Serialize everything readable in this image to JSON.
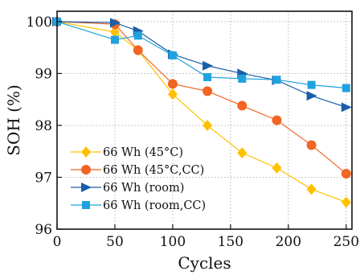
{
  "chart_data": {
    "type": "line",
    "xlabel": "Cycles",
    "ylabel": "SOH (%)",
    "xlim": [
      0,
      255
    ],
    "ylim": [
      96,
      100.2
    ],
    "xticks": [
      "0",
      "50",
      "100",
      "150",
      "200",
      "250"
    ],
    "yticks": [
      "96",
      "97",
      "98",
      "99",
      "100"
    ],
    "grid": true,
    "legend_position": "lower-left",
    "series": [
      {
        "name": "66 Wh (45°C)",
        "color": "#ffc000",
        "marker": "diamond",
        "points": [
          [
            0,
            100.0
          ],
          [
            50,
            99.8
          ],
          [
            70,
            99.45
          ],
          [
            100,
            98.6
          ],
          [
            130,
            98.0
          ],
          [
            160,
            97.47
          ],
          [
            190,
            97.18
          ],
          [
            220,
            96.77
          ],
          [
            250,
            96.52
          ]
        ]
      },
      {
        "name": "66 Wh (45°C,CC)",
        "color": "#f26522",
        "marker": "circle",
        "points": [
          [
            0,
            100.0
          ],
          [
            50,
            99.95
          ],
          [
            70,
            99.45
          ],
          [
            100,
            98.8
          ],
          [
            130,
            98.66
          ],
          [
            160,
            98.38
          ],
          [
            190,
            98.1
          ],
          [
            220,
            97.62
          ],
          [
            250,
            97.07
          ]
        ]
      },
      {
        "name": "66 Wh (room)",
        "color": "#1a5ea8",
        "marker": "triangle-right",
        "points": [
          [
            0,
            100.0
          ],
          [
            50,
            99.98
          ],
          [
            70,
            99.82
          ],
          [
            100,
            99.37
          ],
          [
            130,
            99.15
          ],
          [
            160,
            99.0
          ],
          [
            190,
            98.87
          ],
          [
            220,
            98.57
          ],
          [
            250,
            98.35
          ]
        ]
      },
      {
        "name": "66 Wh (room,CC)",
        "color": "#1fa3de",
        "marker": "square",
        "points": [
          [
            0,
            100.0
          ],
          [
            50,
            99.65
          ],
          [
            70,
            99.73
          ],
          [
            100,
            99.35
          ],
          [
            130,
            98.93
          ],
          [
            160,
            98.9
          ],
          [
            190,
            98.88
          ],
          [
            220,
            98.78
          ],
          [
            250,
            98.72
          ]
        ]
      }
    ]
  }
}
